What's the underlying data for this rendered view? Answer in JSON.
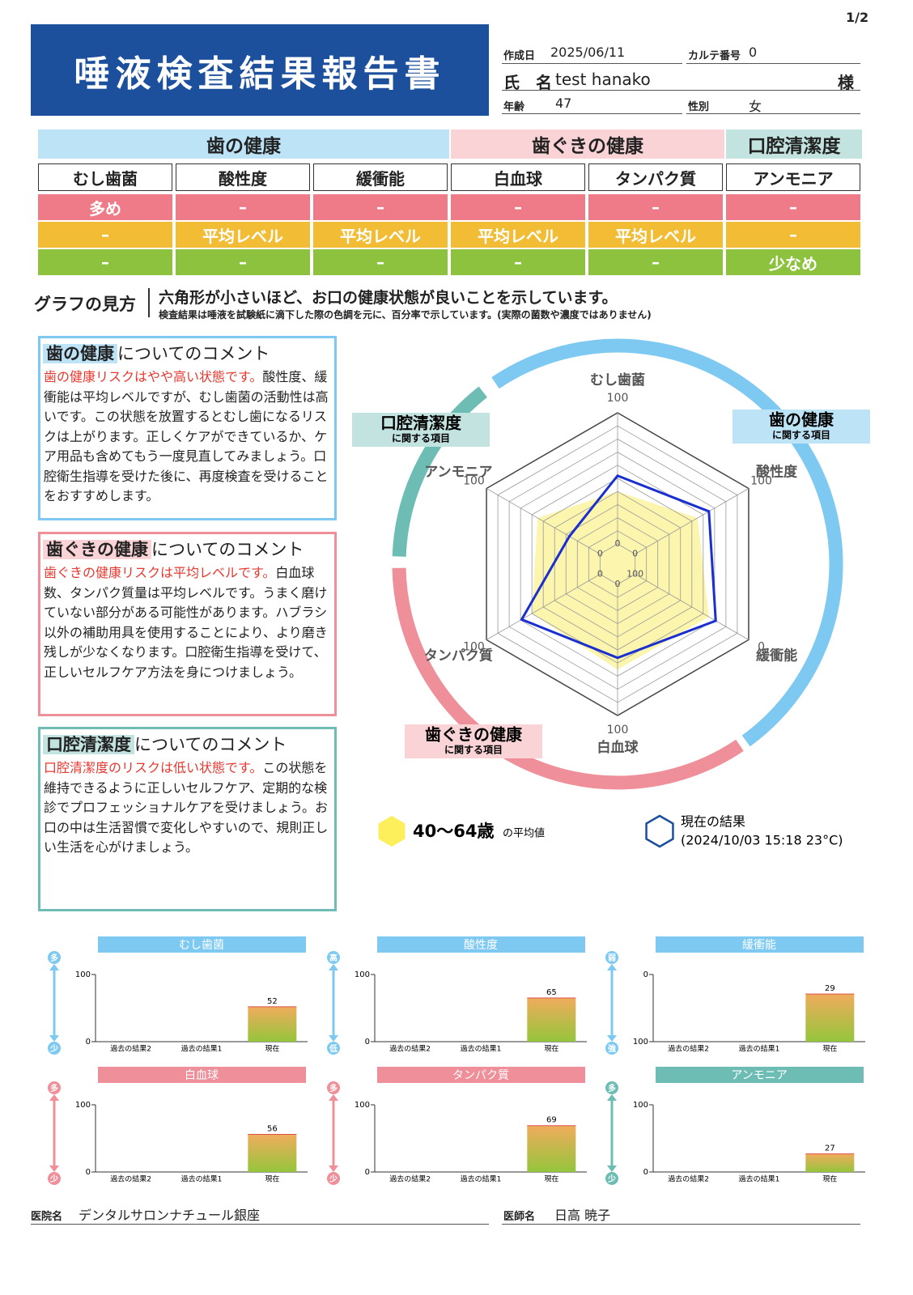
{
  "page_number": "1/2",
  "header": {
    "title": "唾液検査結果報告書"
  },
  "info": {
    "created_label": "作成日",
    "created": "2025/06/11",
    "chart_no_label": "カルテ番号",
    "chart_no": "0",
    "name_label": "氏　名",
    "name": "test hanako",
    "honorific": "様",
    "age_label": "年齢",
    "age": "47",
    "sex_label": "性別",
    "sex": "女"
  },
  "summary": {
    "groups": [
      {
        "label": "歯の健康",
        "span": 3,
        "color": "#bde3f7"
      },
      {
        "label": "歯ぐきの健康",
        "span": 2,
        "color": "#f9d3d6"
      },
      {
        "label": "口腔清潔度",
        "span": 1,
        "color": "#c2e3df"
      }
    ],
    "columns": [
      "むし歯菌",
      "酸性度",
      "緩衝能",
      "白血球",
      "タンパク質",
      "アンモニア"
    ],
    "row_colors": [
      "#ee7b87",
      "#f2bd35",
      "#8dc23f"
    ],
    "rows": [
      [
        "多め",
        "–",
        "–",
        "–",
        "–",
        "–"
      ],
      [
        "–",
        "平均レベル",
        "平均レベル",
        "平均レベル",
        "平均レベル",
        "–"
      ],
      [
        "–",
        "–",
        "–",
        "–",
        "–",
        "少なめ"
      ]
    ]
  },
  "guide": {
    "label": "グラフの見方",
    "text": "六角形が小さいほど、お口の健康状態が良いことを示しています。",
    "note": "検査結果は唾液を試験紙に滴下した際の色調を元に、百分率で示しています。(実際の菌数や濃度ではありません)"
  },
  "comments": [
    {
      "topic": "歯の健康",
      "suffix": "についてのコメント",
      "color": "#7dc9f1",
      "topic_bg": "#bde3f7",
      "lead": "歯の健康リスクはやや高い状態です。",
      "text": "酸性度、緩衝能は平均レベルですが、むし歯菌の活動性は高いです。この状態を放置するとむし歯になるリスクは上がります。正しくケアができているか、ケア用品も含めてもう一度見直してみましょう。口腔衛生指導を受けた後に、再度検査を受けることをおすすめします。"
    },
    {
      "topic": "歯ぐきの健康",
      "suffix": "についてのコメント",
      "color": "#ef8f99",
      "topic_bg": "#f9d3d6",
      "lead": "歯ぐきの健康リスクは平均レベルです。",
      "text": "白血球数、タンパク質量は平均レベルです。うまく磨けていない部分がある可能性があります。ハブラシ以外の補助用具を使用することにより、より磨き残しが少なくなります。口腔衛生指導を受けて、正しいセルフケア方法を身につけましょう。"
    },
    {
      "topic": "口腔清潔度",
      "suffix": "についてのコメント",
      "color": "#6dbdb5",
      "topic_bg": "#c2e3df",
      "lead": "口腔清潔度のリスクは低い状態です。",
      "text": "この状態を維持できるように正しいセルフケア、定期的な検診でプロフェッショナルケアを受けましょう。お口の中は生活習慣で変化しやすいので、規則正しい生活を心がけましょう。"
    }
  ],
  "chart_data": [
    {
      "type": "radar",
      "axes": [
        {
          "name": "むし歯菌",
          "lim": [
            0,
            100
          ],
          "ticks": [
            0,
            100
          ]
        },
        {
          "name": "酸性度",
          "lim": [
            0,
            100
          ],
          "ticks": [
            0,
            100
          ]
        },
        {
          "name": "緩衝能",
          "lim": [
            100,
            0
          ],
          "ticks": [
            0,
            100
          ]
        },
        {
          "name": "白血球",
          "lim": [
            0,
            100
          ],
          "ticks": [
            0,
            100
          ]
        },
        {
          "name": "タンパク質",
          "lim": [
            0,
            100
          ],
          "ticks": [
            0,
            100
          ]
        },
        {
          "name": "アンモニア",
          "lim": [
            0,
            100
          ],
          "ticks": [
            0,
            100
          ]
        }
      ],
      "series": [
        {
          "name": "40〜64歳",
          "suffix": "の平均値",
          "color": "#fbf29a",
          "values": [
            40,
            55,
            35,
            65,
            60,
            55
          ]
        },
        {
          "name": "現在の結果",
          "note": "(2024/10/03 15:18 23°C)",
          "color": "#1a2fd0",
          "values": [
            52,
            65,
            29,
            56,
            69,
            27
          ]
        }
      ],
      "groups": [
        {
          "label": "歯の健康",
          "sub": "に関する項目",
          "color": "#7dc9f1",
          "box": "#bde3f7"
        },
        {
          "label": "歯ぐきの健康",
          "sub": "に関する項目",
          "color": "#ef8f99",
          "box": "#f9d3d6"
        },
        {
          "label": "口腔清潔度",
          "sub": "に関する項目",
          "color": "#6dbdb5",
          "box": "#c2e3df"
        }
      ]
    },
    {
      "type": "bar",
      "title": "むし歯菌",
      "categories": [
        "過去の結果2",
        "過去の結果1",
        "現在"
      ],
      "values": [
        null,
        null,
        52
      ],
      "ylim": [
        0,
        100
      ],
      "yticks": [
        0,
        100
      ],
      "color": "#7dc9f1",
      "scale_labels": [
        "多",
        "少"
      ]
    },
    {
      "type": "bar",
      "title": "酸性度",
      "categories": [
        "過去の結果2",
        "過去の結果1",
        "現在"
      ],
      "values": [
        null,
        null,
        65
      ],
      "ylim": [
        0,
        100
      ],
      "yticks": [
        0,
        100
      ],
      "color": "#7dc9f1",
      "scale_labels": [
        "高",
        "低"
      ]
    },
    {
      "type": "bar",
      "title": "緩衝能",
      "categories": [
        "過去の結果2",
        "過去の結果1",
        "現在"
      ],
      "values": [
        null,
        null,
        29
      ],
      "ylim": [
        100,
        0
      ],
      "yticks": [
        0,
        100
      ],
      "color": "#7dc9f1",
      "scale_labels": [
        "弱",
        "強"
      ]
    },
    {
      "type": "bar",
      "title": "白血球",
      "categories": [
        "過去の結果2",
        "過去の結果1",
        "現在"
      ],
      "values": [
        null,
        null,
        56
      ],
      "ylim": [
        0,
        100
      ],
      "yticks": [
        0,
        100
      ],
      "color": "#ef8f99",
      "scale_labels": [
        "多",
        "少"
      ]
    },
    {
      "type": "bar",
      "title": "タンパク質",
      "categories": [
        "過去の結果2",
        "過去の結果1",
        "現在"
      ],
      "values": [
        null,
        null,
        69
      ],
      "ylim": [
        0,
        100
      ],
      "yticks": [
        0,
        100
      ],
      "color": "#ef8f99",
      "scale_labels": [
        "多",
        "少"
      ]
    },
    {
      "type": "bar",
      "title": "アンモニア",
      "categories": [
        "過去の結果2",
        "過去の結果1",
        "現在"
      ],
      "values": [
        null,
        null,
        27
      ],
      "ylim": [
        0,
        100
      ],
      "yticks": [
        0,
        100
      ],
      "color": "#6dbdb5",
      "scale_labels": [
        "多",
        "少"
      ]
    }
  ],
  "footer": {
    "clinic_label": "医院名",
    "clinic": "デンタルサロンナチュール銀座",
    "doctor_label": "医師名",
    "doctor": "日高 暁子"
  }
}
